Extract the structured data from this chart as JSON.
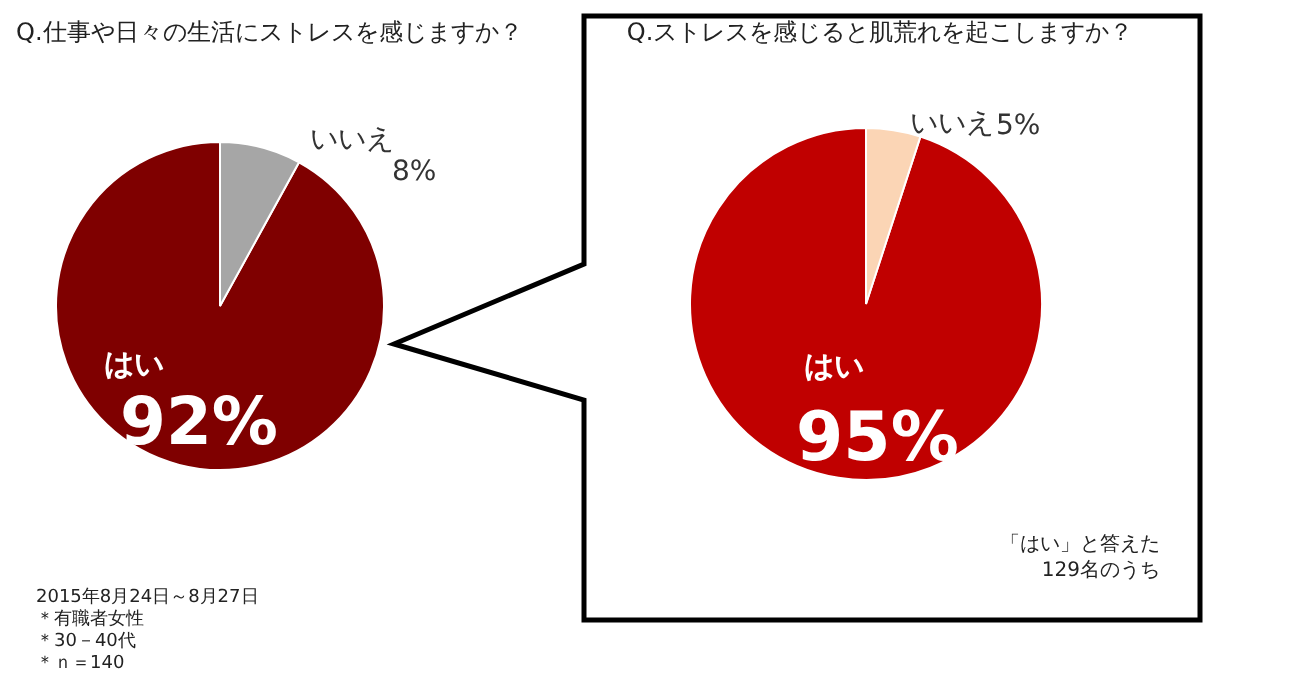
{
  "chart_data": [
    {
      "type": "pie",
      "title": "Q.仕事や日々の生活にストレスを感じますか？",
      "categories": [
        "はい",
        "いいえ"
      ],
      "values": [
        92,
        8
      ],
      "colors": [
        "#7f0000",
        "#a6a6a6"
      ],
      "value_labels": [
        "92%",
        "8%"
      ],
      "annotations": [
        "2015年8月24日～8月27日",
        "＊有職者女性",
        "＊30－40代",
        "＊ｎ＝140"
      ]
    },
    {
      "type": "pie",
      "title": "Q.ストレスを感じると肌荒れを起こしますか？",
      "categories": [
        "はい",
        "いいえ"
      ],
      "values": [
        95,
        5
      ],
      "colors": [
        "#c00000",
        "#fbd5b5"
      ],
      "value_labels": [
        "95%",
        "5%"
      ],
      "annotations": [
        "「はい」と答えた",
        "129名のうち"
      ]
    }
  ]
}
